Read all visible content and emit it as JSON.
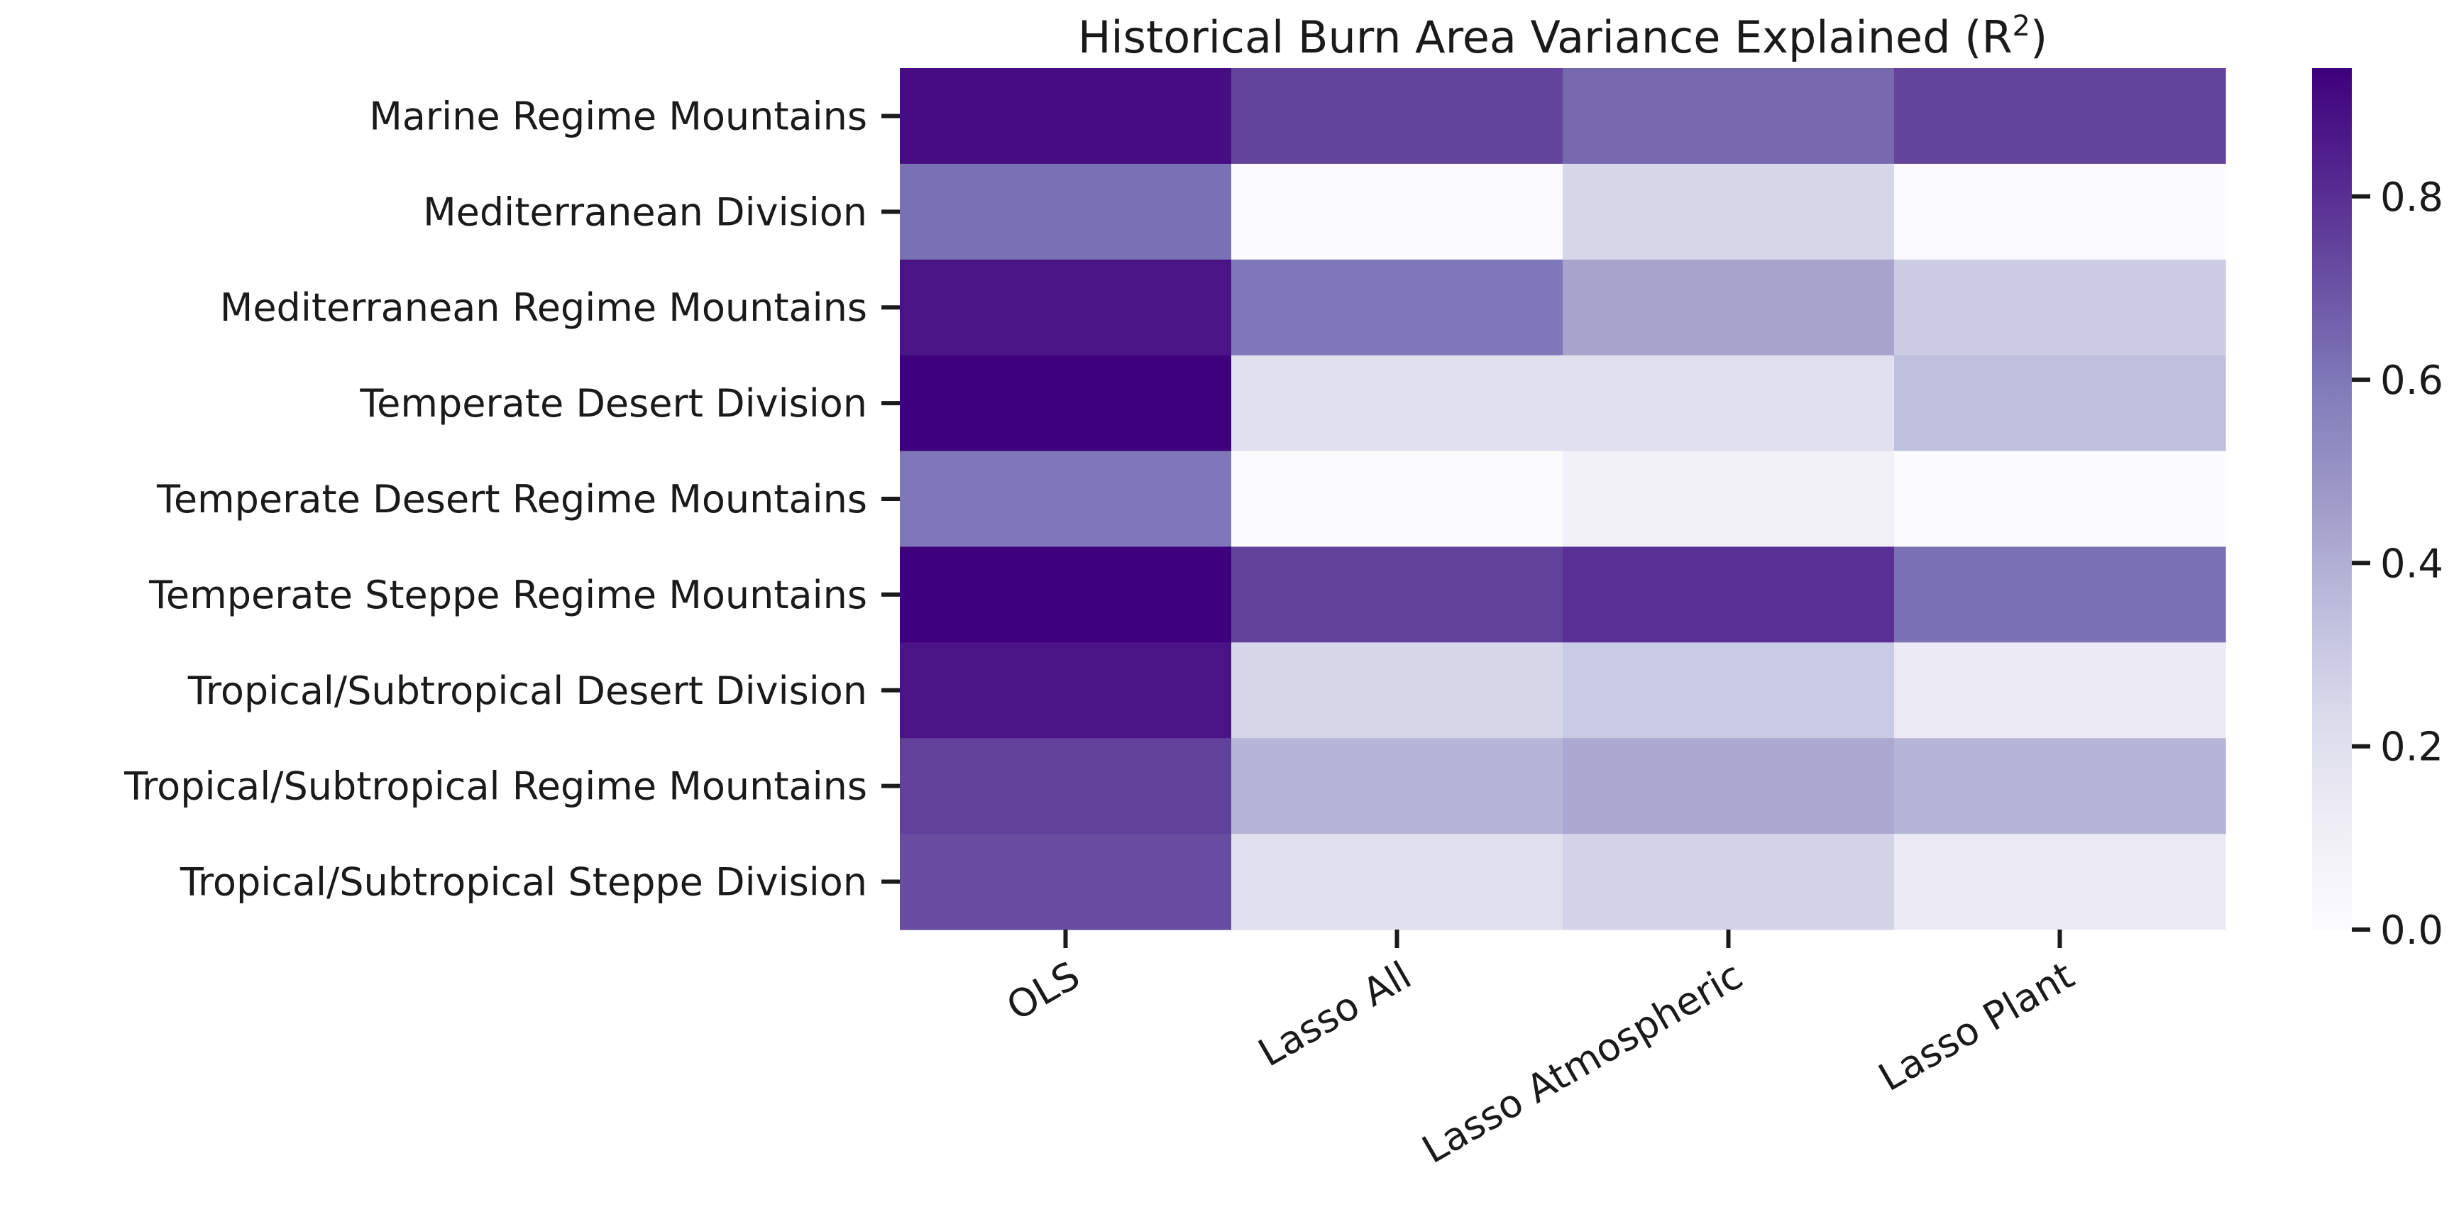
{
  "chart_data": {
    "type": "heatmap",
    "title": "Historical Burn Area Variance Explained (R",
    "title_superscript": "2",
    "title_suffix": ")",
    "xlabel": "",
    "ylabel": "",
    "columns": [
      "OLS",
      "Lasso All",
      "Lasso Atmospheric",
      "Lasso Plant"
    ],
    "rows": [
      "Marine Regime Mountains",
      "Mediterranean Division",
      "Mediterranean Regime Mountains",
      "Temperate Desert Division",
      "Temperate Desert Regime Mountains",
      "Temperate Steppe Regime Mountains",
      "Tropical/Subtropical Desert Division",
      "Tropical/Subtropical Regime Mountains",
      "Tropical/Subtropical Steppe Division"
    ],
    "values": [
      [
        0.9,
        0.74,
        0.64,
        0.74
      ],
      [
        0.62,
        0.01,
        0.25,
        0.01
      ],
      [
        0.88,
        0.6,
        0.44,
        0.29
      ],
      [
        0.94,
        0.2,
        0.2,
        0.34
      ],
      [
        0.6,
        0.01,
        0.08,
        0.01
      ],
      [
        0.94,
        0.75,
        0.8,
        0.62
      ],
      [
        0.88,
        0.25,
        0.3,
        0.14
      ],
      [
        0.75,
        0.38,
        0.42,
        0.38
      ],
      [
        0.72,
        0.2,
        0.26,
        0.14
      ]
    ],
    "colormap": "Purples",
    "colormap_stops": [
      "#fcfbfd",
      "#efedf5",
      "#dadaeb",
      "#bcbddc",
      "#9e9ac8",
      "#807dba",
      "#6a51a3",
      "#54278f",
      "#3f007d"
    ],
    "colorbar": {
      "range": [
        0,
        0.94
      ],
      "ticks": [
        0.0,
        0.2,
        0.4,
        0.6,
        0.8
      ],
      "tick_labels": [
        "0.0",
        "0.2",
        "0.4",
        "0.6",
        "0.8"
      ]
    },
    "grid": false
  }
}
